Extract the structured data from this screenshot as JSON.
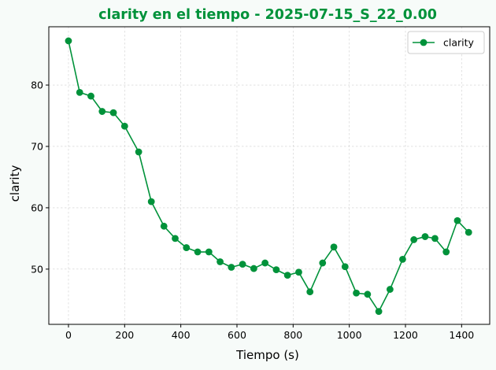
{
  "chart_data": {
    "type": "line",
    "title": "clarity en el tiempo - 2025-07-15_S_22_0.00",
    "xlabel": "Tiempo (s)",
    "ylabel": "clarity",
    "xlim": [
      -70,
      1500
    ],
    "ylim": [
      41,
      89.5
    ],
    "xticks": [
      0,
      200,
      400,
      600,
      800,
      1000,
      1200,
      1400
    ],
    "yticks": [
      50,
      60,
      70,
      80
    ],
    "grid": true,
    "legend_position": "top-right",
    "series": [
      {
        "name": "clarity",
        "color": "#00923a",
        "marker": "circle",
        "x": [
          0,
          40,
          80,
          120,
          160,
          200,
          250,
          295,
          340,
          380,
          420,
          460,
          500,
          540,
          580,
          620,
          660,
          700,
          740,
          780,
          820,
          860,
          905,
          945,
          985,
          1025,
          1065,
          1105,
          1145,
          1190,
          1230,
          1270,
          1305,
          1345,
          1385,
          1425
        ],
        "y": [
          87.2,
          78.8,
          78.2,
          75.7,
          75.5,
          73.3,
          69.1,
          61.0,
          57.0,
          55.0,
          53.5,
          52.8,
          52.8,
          51.2,
          50.3,
          50.8,
          50.1,
          51.0,
          49.9,
          49.0,
          49.5,
          46.3,
          51.0,
          53.6,
          50.4,
          46.1,
          45.9,
          43.1,
          46.7,
          51.6,
          54.8,
          55.3,
          55.0,
          52.8,
          57.9,
          56.0
        ]
      }
    ]
  }
}
